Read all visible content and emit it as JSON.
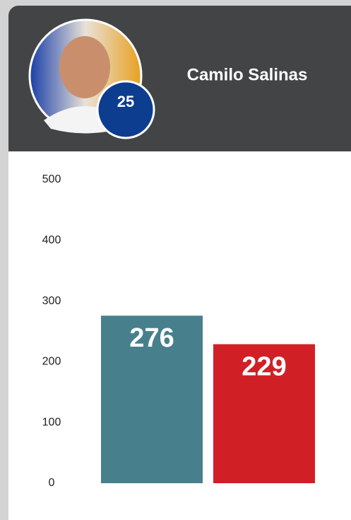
{
  "header": {
    "name": "Camilo Salinas",
    "badge": "25"
  },
  "chart_data": {
    "type": "bar",
    "categories": [
      null,
      null
    ],
    "values": [
      276,
      229
    ],
    "colors": [
      "#47808c",
      "#d11f26"
    ],
    "ylim": [
      0,
      500
    ],
    "yticks": [
      0,
      100,
      200,
      300,
      400,
      500
    ],
    "grid": false
  }
}
